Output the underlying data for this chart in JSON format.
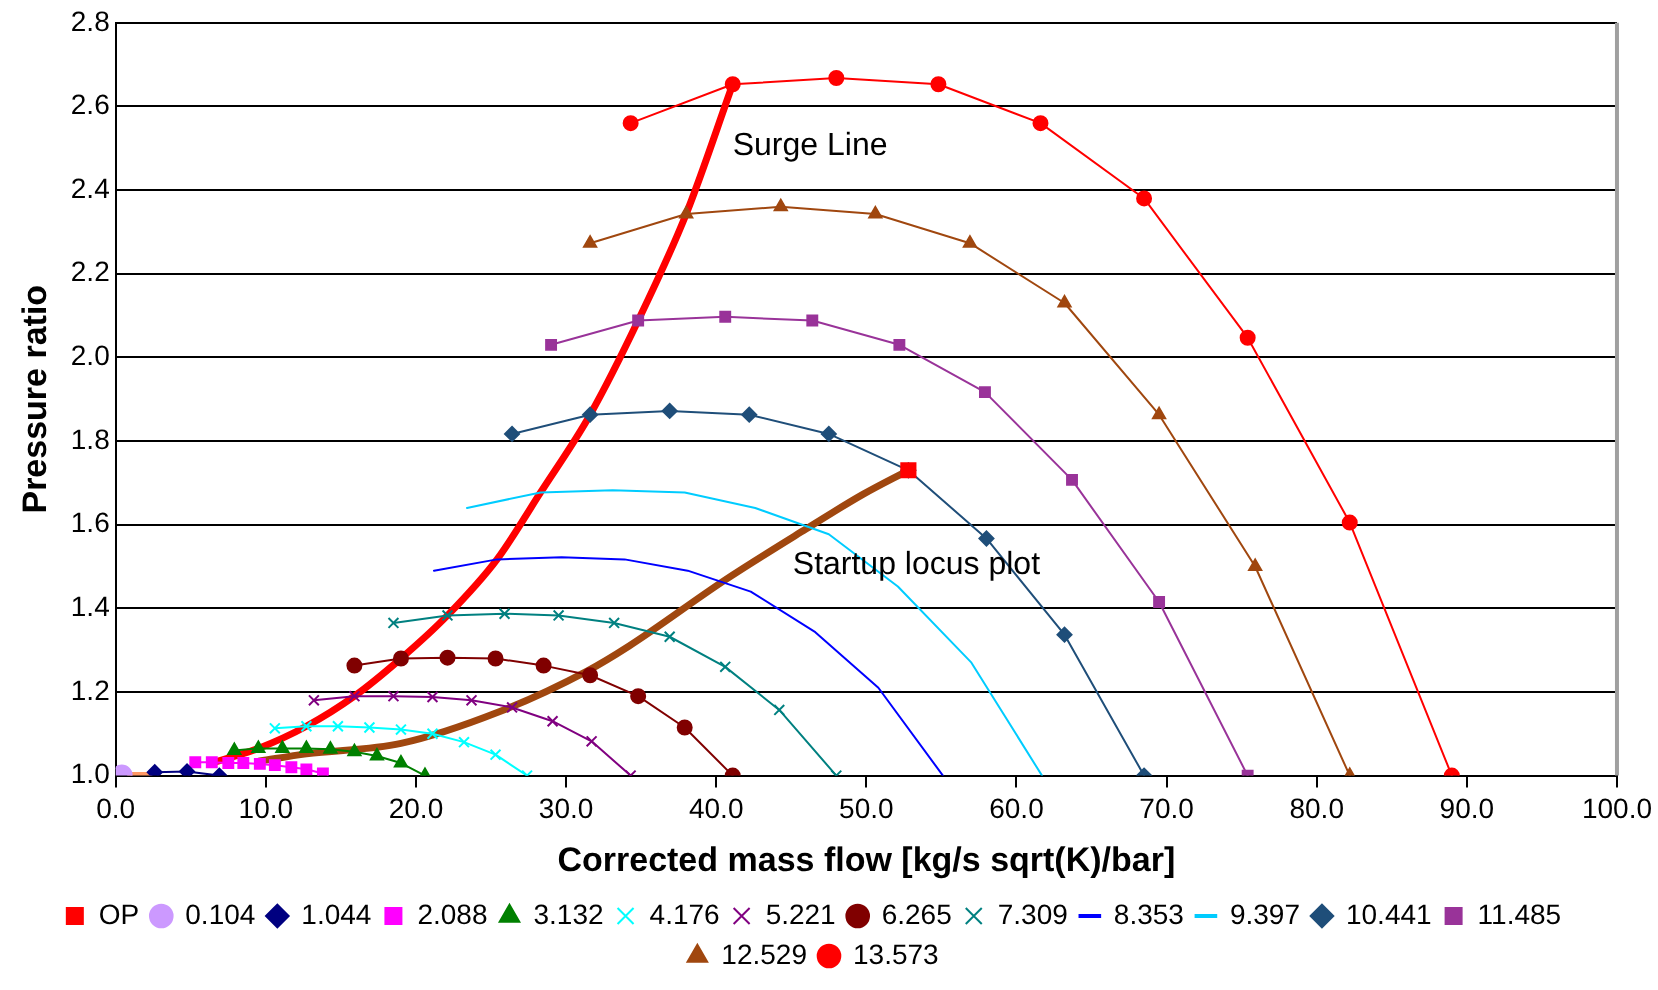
{
  "chart_data": {
    "type": "line",
    "xlabel": "Corrected mass flow [kg/s sqrt(K)/bar]",
    "ylabel": "Pressure ratio",
    "xlim": [
      0,
      100
    ],
    "xticks": [
      {
        "value": 0,
        "label": "0.0"
      },
      {
        "value": 10,
        "label": "10.0"
      },
      {
        "value": 20,
        "label": "20.0"
      },
      {
        "value": 30,
        "label": "30.0"
      },
      {
        "value": 40,
        "label": "40.0"
      },
      {
        "value": 50,
        "label": "50.0"
      },
      {
        "value": 60,
        "label": "60.0"
      },
      {
        "value": 70,
        "label": "70.0"
      },
      {
        "value": 80,
        "label": "80.0"
      },
      {
        "value": 90,
        "label": "90.0"
      },
      {
        "value": 100,
        "label": "100.0"
      }
    ],
    "ylim": [
      1,
      2.8
    ],
    "yticks": [
      {
        "value": 1,
        "label": "1.0"
      },
      {
        "value": 1.2,
        "label": "1.2"
      },
      {
        "value": 1.4,
        "label": "1.4"
      },
      {
        "value": 1.6,
        "label": "1.6"
      },
      {
        "value": 1.8,
        "label": "1.8"
      },
      {
        "value": 2,
        "label": "2.0"
      },
      {
        "value": 2.2,
        "label": "2.2"
      },
      {
        "value": 2.4,
        "label": "2.4"
      },
      {
        "value": 2.6,
        "label": "2.6"
      },
      {
        "value": 2.8,
        "label": "2.8"
      }
    ],
    "grid": "y",
    "legend": "bottom",
    "annotations": [
      "Surge Line",
      "Startup locus plot"
    ],
    "series": [
      {
        "name": "1.044",
        "color": "#000080",
        "marker": "diamond",
        "x": [
          2.6,
          4.75,
          6.9
        ],
        "values": [
          1.008,
          1.01,
          1.0
        ]
      },
      {
        "name": "2.088",
        "color": "#ff00ff",
        "marker": "square",
        "x": [
          5.3,
          6.4,
          7.5,
          8.5,
          9.6,
          10.6,
          11.7,
          12.7,
          13.8
        ],
        "values": [
          1.032,
          1.032,
          1.03,
          1.03,
          1.028,
          1.025,
          1.02,
          1.015,
          1.005
        ]
      },
      {
        "name": "3.132",
        "color": "#008000",
        "marker": "triangle",
        "x": [
          7.9,
          9.5,
          11.1,
          12.7,
          14.3,
          15.9,
          17.4,
          19.0,
          20.6
        ],
        "values": [
          1.06,
          1.065,
          1.065,
          1.065,
          1.063,
          1.057,
          1.047,
          1.03,
          1.0
        ]
      },
      {
        "name": "4.176",
        "color": "#00ffff",
        "marker": "cross",
        "x": [
          10.6,
          12.7,
          14.8,
          16.9,
          19.0,
          21.1,
          23.2,
          25.3,
          27.4
        ],
        "values": [
          1.113,
          1.118,
          1.118,
          1.115,
          1.11,
          1.1,
          1.08,
          1.05,
          1.0
        ]
      },
      {
        "name": "5.221",
        "color": "#800080",
        "marker": "cross",
        "x": [
          13.2,
          15.9,
          18.5,
          21.1,
          23.7,
          26.4,
          29.1,
          31.7,
          34.3
        ],
        "values": [
          1.18,
          1.19,
          1.19,
          1.188,
          1.18,
          1.163,
          1.13,
          1.082,
          1.0
        ]
      },
      {
        "name": "6.265",
        "color": "#800000",
        "marker": "circle",
        "x": [
          15.9,
          19.0,
          22.1,
          25.3,
          28.5,
          31.6,
          34.8,
          37.9,
          41.1
        ],
        "values": [
          1.263,
          1.28,
          1.282,
          1.28,
          1.263,
          1.24,
          1.19,
          1.115,
          1.0
        ]
      },
      {
        "name": "7.309",
        "color": "#008080",
        "marker": "cross",
        "x": [
          18.5,
          22.1,
          25.9,
          29.5,
          33.2,
          36.9,
          40.6,
          44.2,
          48.0
        ],
        "values": [
          1.365,
          1.383,
          1.387,
          1.383,
          1.365,
          1.332,
          1.26,
          1.157,
          1.0
        ]
      },
      {
        "name": "8.353",
        "color": "#0000ff",
        "marker": "none",
        "x": [
          21.2,
          25.4,
          29.7,
          33.9,
          38.1,
          42.3,
          46.6,
          50.8,
          55.1
        ],
        "values": [
          1.49,
          1.517,
          1.522,
          1.517,
          1.49,
          1.44,
          1.343,
          1.21,
          1.0
        ]
      },
      {
        "name": "9.397",
        "color": "#00ccff",
        "marker": "none",
        "x": [
          23.4,
          28.3,
          33.1,
          37.9,
          42.6,
          47.5,
          52.1,
          57.0,
          61.7
        ],
        "values": [
          1.64,
          1.677,
          1.682,
          1.677,
          1.64,
          1.577,
          1.452,
          1.27,
          1.0
        ]
      },
      {
        "name": "10.441",
        "color": "#1f4e79",
        "marker": "diamond",
        "x": [
          26.4,
          31.6,
          36.9,
          42.2,
          47.5,
          52.8,
          58.0,
          63.2,
          68.5
        ],
        "values": [
          1.817,
          1.863,
          1.872,
          1.863,
          1.817,
          1.73,
          1.567,
          1.337,
          1.0
        ]
      },
      {
        "name": "11.485",
        "color": "#993399",
        "marker": "square",
        "x": [
          29.0,
          34.8,
          40.6,
          46.4,
          52.2,
          57.9,
          63.7,
          69.5,
          75.4
        ],
        "values": [
          2.03,
          2.088,
          2.097,
          2.088,
          2.03,
          1.917,
          1.707,
          1.415,
          1.0
        ]
      },
      {
        "name": "12.529",
        "color": "#a0470f",
        "marker": "triangle",
        "x": [
          31.6,
          38.0,
          44.3,
          50.6,
          56.9,
          63.2,
          69.5,
          75.9,
          82.2
        ],
        "values": [
          2.273,
          2.343,
          2.36,
          2.343,
          2.273,
          2.13,
          1.863,
          1.5,
          1.0
        ]
      },
      {
        "name": "13.573",
        "color": "#ff0000",
        "marker": "circle",
        "x": [
          34.3,
          41.1,
          48.0,
          54.8,
          61.6,
          68.5,
          75.4,
          82.2,
          89.0
        ],
        "values": [
          2.56,
          2.653,
          2.668,
          2.653,
          2.56,
          2.38,
          2.047,
          1.605,
          1.0
        ]
      },
      {
        "name": "OP",
        "type": "scatter",
        "color": "#ff0000",
        "marker": "square",
        "x": [
          52.8
        ],
        "values": [
          1.73
        ]
      },
      {
        "name": "0.104",
        "type": "scatter",
        "color": "#cc99ff",
        "marker": "circle",
        "x": [
          0.4
        ],
        "values": [
          1.0
        ]
      },
      {
        "color": "#ff9966",
        "marker": "none",
        "x": [
          1.0,
          1.6,
          2.2
        ],
        "values": [
          1.0,
          1.0,
          1.0
        ]
      },
      {
        "color": "#ff0000",
        "marker": "none",
        "x": [
          6.4,
          9.5,
          12.7,
          15.9,
          19.0,
          22.1,
          25.4,
          28.3,
          31.6,
          34.8,
          38.0,
          41.1
        ],
        "values": [
          1.03,
          1.065,
          1.118,
          1.19,
          1.28,
          1.383,
          1.517,
          1.677,
          1.863,
          2.088,
          2.343,
          2.653
        ]
      },
      {
        "color": "#a0470f",
        "marker": "none",
        "x": [
          9.6,
          12.7,
          19.0,
          25.5,
          31.4,
          34.2,
          40.6,
          46.0,
          49.8,
          52.8
        ],
        "values": [
          1.035,
          1.052,
          1.077,
          1.152,
          1.25,
          1.31,
          1.468,
          1.59,
          1.673,
          1.73
        ]
      }
    ]
  }
}
